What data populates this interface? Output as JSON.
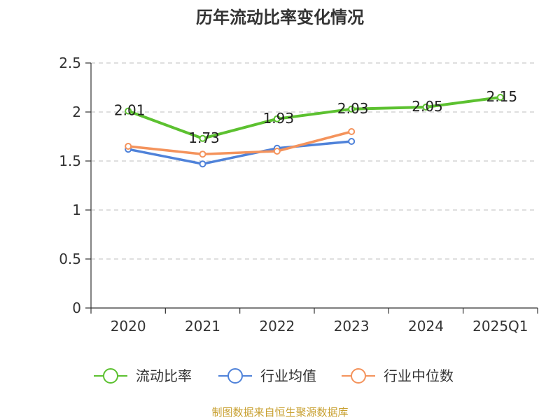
{
  "chart_data": {
    "type": "line",
    "title": "历年流动比率变化情况",
    "categories": [
      "2020",
      "2021",
      "2022",
      "2023",
      "2024",
      "2025Q1"
    ],
    "ylim": [
      0,
      2.5
    ],
    "yticks": [
      "0",
      "0.5",
      "1",
      "1.5",
      "2",
      "2.5"
    ],
    "grid": "horizontal dashed",
    "legend_position": "bottom",
    "series": [
      {
        "name": "流动比率",
        "color": "#5cc130",
        "values": [
          2.01,
          1.73,
          1.93,
          2.03,
          2.05,
          2.15
        ],
        "labels": [
          "2.01",
          "1.73",
          "1.93",
          "2.03",
          "2.05",
          "2.15"
        ]
      },
      {
        "name": "行业均值",
        "color": "#4f82d9",
        "values": [
          1.62,
          1.47,
          1.63,
          1.7,
          null,
          null
        ]
      },
      {
        "name": "行业中位数",
        "color": "#f4935c",
        "values": [
          1.65,
          1.57,
          1.6,
          1.8,
          null,
          null
        ]
      }
    ],
    "source": "制图数据来自恒生聚源数据库"
  }
}
